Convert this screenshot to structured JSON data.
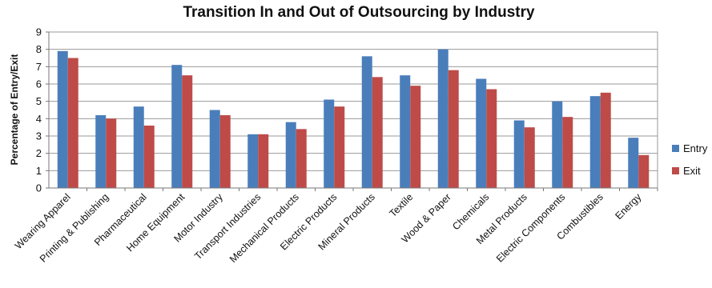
{
  "chart_data": {
    "type": "bar",
    "title": "Transition In and Out of Outsourcing by Industry",
    "xlabel": "",
    "ylabel": "Percentage of Entry/Exit",
    "ylim": [
      0,
      9
    ],
    "yticks": [
      0,
      1,
      2,
      3,
      4,
      5,
      6,
      7,
      8,
      9
    ],
    "grid": true,
    "legend": "right",
    "categories": [
      "Wearing Apparel",
      "Printing & Publishing",
      "Pharmaceutical",
      "Home Equipment",
      "Motor Industry",
      "Transport Industries",
      "Mechanical Products",
      "Electric Products",
      "Mineral Products",
      "Textile",
      "Wood & Paper",
      "Chemicals",
      "Metal Products",
      "Electric Components",
      "Combustibles",
      "Energy"
    ],
    "series": [
      {
        "name": "Entry",
        "color": "#4a7ebb",
        "values": [
          7.9,
          4.2,
          4.7,
          7.1,
          4.5,
          3.1,
          3.8,
          5.1,
          7.6,
          6.5,
          8.0,
          6.3,
          3.9,
          5.0,
          5.3,
          2.9
        ]
      },
      {
        "name": "Exit",
        "color": "#be4b48",
        "values": [
          7.5,
          4.0,
          3.6,
          6.5,
          4.2,
          3.1,
          3.4,
          4.7,
          6.4,
          5.9,
          6.8,
          5.7,
          3.5,
          4.1,
          5.5,
          1.9
        ]
      }
    ]
  }
}
